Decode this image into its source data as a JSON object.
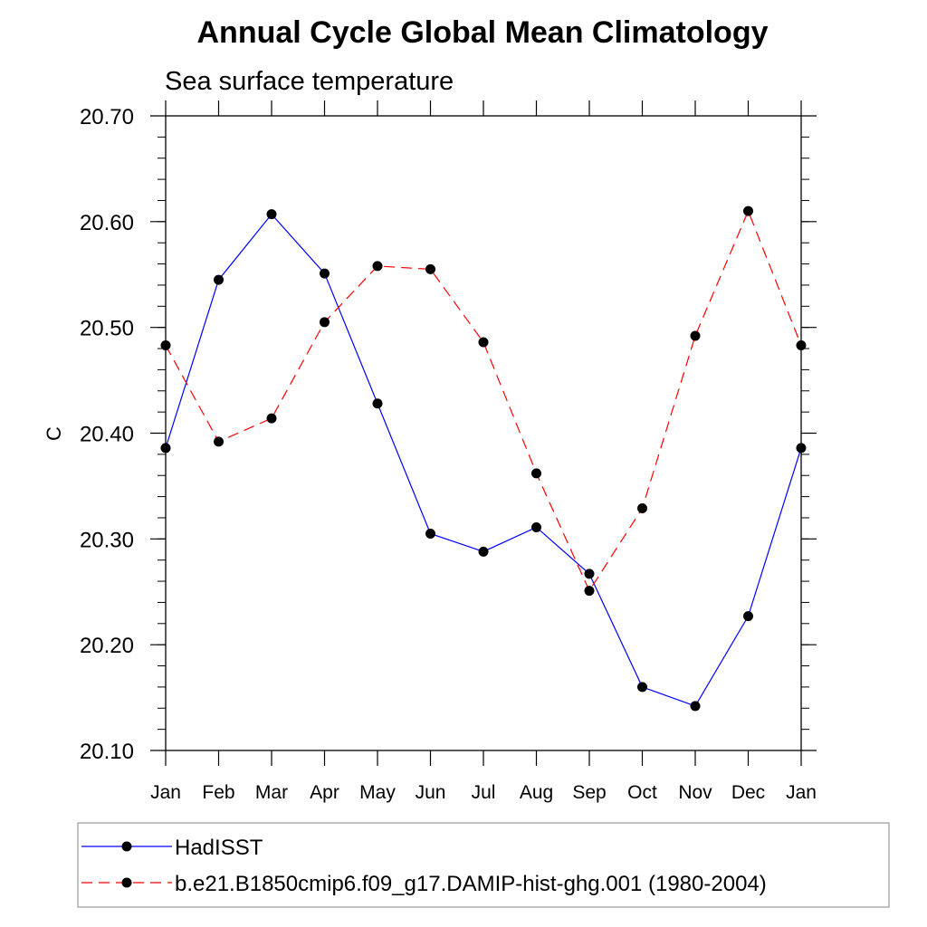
{
  "chart_data": {
    "type": "line",
    "title": "Annual Cycle Global Mean Climatology",
    "subtitle": "Sea surface temperature",
    "xlabel": "",
    "ylabel": "C",
    "categories": [
      "Jan",
      "Feb",
      "Mar",
      "Apr",
      "May",
      "Jun",
      "Jul",
      "Aug",
      "Sep",
      "Oct",
      "Nov",
      "Dec",
      "Jan"
    ],
    "ylim": [
      20.1,
      20.7
    ],
    "yticks": [
      20.1,
      20.2,
      20.3,
      20.4,
      20.5,
      20.6,
      20.7
    ],
    "ytick_labels": [
      "20.10",
      "20.20",
      "20.30",
      "20.40",
      "20.50",
      "20.60",
      "20.70"
    ],
    "y_minor_step": 0.02,
    "grid": false,
    "legend_position": "bottom",
    "series": [
      {
        "name": "HadISST",
        "color": "#0000ff",
        "dash": "solid",
        "marker": "circle",
        "values": [
          20.386,
          20.545,
          20.607,
          20.551,
          20.428,
          20.305,
          20.288,
          20.311,
          20.267,
          20.16,
          20.142,
          20.227,
          20.386
        ]
      },
      {
        "name": "b.e21.B1850cmip6.f09_g17.DAMIP-hist-ghg.001 (1980-2004)",
        "color": "#ff0000",
        "dash": "dashed",
        "marker": "circle",
        "values": [
          20.483,
          20.392,
          20.414,
          20.505,
          20.558,
          20.555,
          20.486,
          20.362,
          20.251,
          20.329,
          20.492,
          20.61,
          20.483
        ]
      }
    ]
  }
}
